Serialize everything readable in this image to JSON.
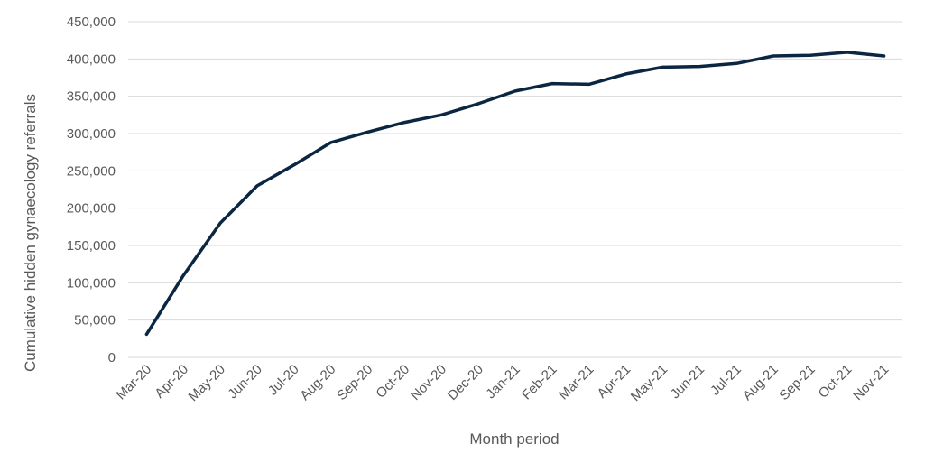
{
  "chart_data": {
    "type": "line",
    "title": "",
    "xlabel": "Month period",
    "ylabel": "Cumulative hidden gynaecology referrals",
    "categories": [
      "Mar-20",
      "Apr-20",
      "May-20",
      "Jun-20",
      "Jul-20",
      "Aug-20",
      "Sep-20",
      "Oct-20",
      "Nov-20",
      "Dec-20",
      "Jan-21",
      "Feb-21",
      "Mar-21",
      "Apr-21",
      "May-21",
      "Jun-21",
      "Jul-21",
      "Aug-21",
      "Sep-21",
      "Oct-21",
      "Nov-21"
    ],
    "series": [
      {
        "values": [
          31000,
          110000,
          180000,
          230000,
          258000,
          288000,
          302000,
          315000,
          325000,
          340000,
          357000,
          367000,
          366000,
          380000,
          389000,
          390000,
          394000,
          404000,
          405000,
          409000,
          404000
        ],
        "color": "#0b2641"
      }
    ],
    "ylim": [
      0,
      450000
    ],
    "ytick_step": 50000,
    "yticks": [
      "0",
      "50,000",
      "100,000",
      "150,000",
      "200,000",
      "250,000",
      "300,000",
      "350,000",
      "400,000",
      "450,000"
    ],
    "grid": true,
    "legend": "none"
  }
}
